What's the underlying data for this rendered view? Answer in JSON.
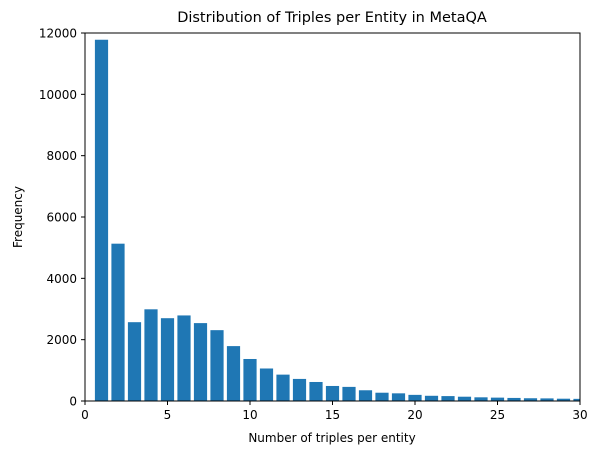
{
  "chart_data": {
    "type": "bar",
    "title": "Distribution of Triples per Entity in MetaQA",
    "xlabel": "Number of triples per entity",
    "ylabel": "Frequency",
    "xlim": [
      0,
      30
    ],
    "ylim": [
      0,
      12000
    ],
    "xticks": [
      0,
      5,
      10,
      15,
      20,
      25,
      30
    ],
    "yticks": [
      0,
      2000,
      4000,
      6000,
      8000,
      10000,
      12000
    ],
    "grid": false,
    "bar_color": "#1f77b4",
    "series": [
      {
        "x": [
          1,
          2,
          3,
          4,
          5,
          6,
          7,
          8,
          9,
          10,
          11,
          12,
          13,
          14,
          15,
          16,
          17,
          18,
          19,
          20,
          21,
          22,
          23,
          24,
          25,
          26,
          27,
          28,
          29,
          30
        ],
        "values": [
          11780,
          5130,
          2570,
          2990,
          2700,
          2790,
          2540,
          2310,
          1790,
          1370,
          1060,
          860,
          720,
          620,
          490,
          460,
          350,
          270,
          250,
          200,
          170,
          160,
          140,
          120,
          110,
          100,
          90,
          85,
          75,
          70
        ]
      }
    ]
  }
}
